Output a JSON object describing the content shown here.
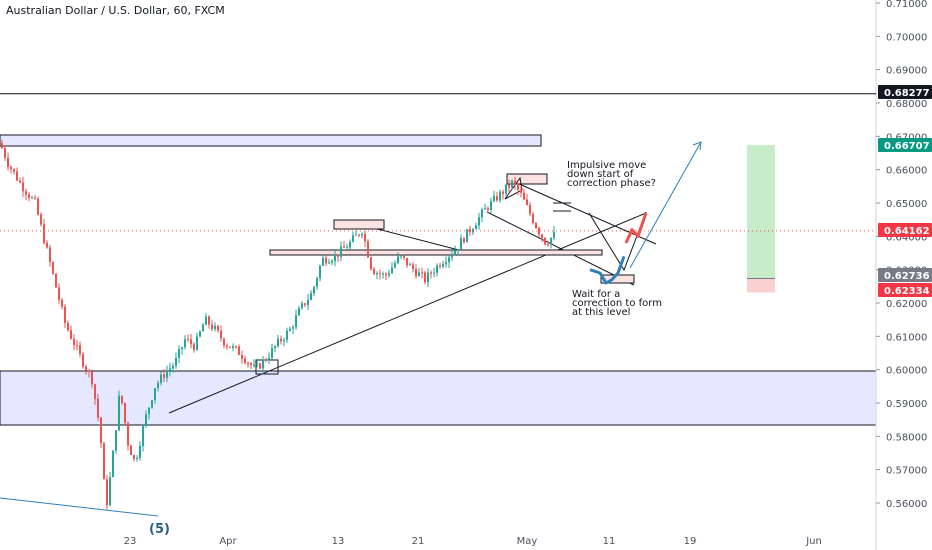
{
  "header": {
    "title": "Australian Dollar / U.S. Dollar, 60, FXCM"
  },
  "chart_data": {
    "type": "candlestick",
    "symbol": "AUD/USD",
    "timeframe": "60",
    "source": "FXCM",
    "ylim": [
      0.5515,
      0.714
    ],
    "x_ticks": [
      "23",
      "Apr",
      "13",
      "21",
      "May",
      "11",
      "19",
      "Jun"
    ],
    "y_ticks": [
      "0.71000",
      "0.70000",
      "0.69000",
      "0.68000",
      "0.67000",
      "0.66000",
      "0.65000",
      "0.64000",
      "0.63000",
      "0.62000",
      "0.61000",
      "0.60000",
      "0.59000",
      "0.58000",
      "0.57000",
      "0.56000"
    ],
    "price_path": [
      [
        0,
        0.668
      ],
      [
        8,
        0.662
      ],
      [
        20,
        0.656
      ],
      [
        35,
        0.65
      ],
      [
        45,
        0.638
      ],
      [
        55,
        0.626
      ],
      [
        65,
        0.614
      ],
      [
        80,
        0.604
      ],
      [
        92,
        0.597
      ],
      [
        100,
        0.582
      ],
      [
        106,
        0.558
      ],
      [
        112,
        0.572
      ],
      [
        120,
        0.594
      ],
      [
        128,
        0.578
      ],
      [
        135,
        0.572
      ],
      [
        145,
        0.585
      ],
      [
        155,
        0.595
      ],
      [
        165,
        0.599
      ],
      [
        175,
        0.602
      ],
      [
        185,
        0.609
      ],
      [
        195,
        0.607
      ],
      [
        205,
        0.615
      ],
      [
        215,
        0.612
      ],
      [
        225,
        0.608
      ],
      [
        240,
        0.605
      ],
      [
        255,
        0.6
      ],
      [
        265,
        0.603
      ],
      [
        278,
        0.608
      ],
      [
        290,
        0.612
      ],
      [
        300,
        0.618
      ],
      [
        312,
        0.623
      ],
      [
        322,
        0.633
      ],
      [
        335,
        0.634
      ],
      [
        350,
        0.638
      ],
      [
        362,
        0.642
      ],
      [
        372,
        0.63
      ],
      [
        385,
        0.628
      ],
      [
        400,
        0.634
      ],
      [
        410,
        0.631
      ],
      [
        425,
        0.627
      ],
      [
        440,
        0.632
      ],
      [
        455,
        0.636
      ],
      [
        470,
        0.642
      ],
      [
        485,
        0.648
      ],
      [
        498,
        0.652
      ],
      [
        512,
        0.656
      ],
      [
        520,
        0.653
      ],
      [
        528,
        0.648
      ],
      [
        538,
        0.642
      ],
      [
        546,
        0.638
      ],
      [
        556,
        0.641
      ]
    ],
    "projection_blue": [
      [
        590,
        0.63
      ],
      [
        600,
        0.629
      ],
      [
        606,
        0.626
      ],
      [
        612,
        0.627
      ],
      [
        618,
        0.629
      ],
      [
        624,
        0.634
      ]
    ],
    "projection_red": [
      [
        626,
        0.638
      ],
      [
        632,
        0.642
      ],
      [
        638,
        0.64
      ],
      [
        646,
        0.647
      ]
    ],
    "current_price": 0.64162,
    "level_lines": [
      {
        "price": 0.68277,
        "label": "0.68277"
      }
    ],
    "price_badges": [
      {
        "label": "0.68277",
        "color": "#131722"
      },
      {
        "label": "0.66707",
        "color": "#089981"
      },
      {
        "label": "0.64162",
        "color": "#f23645"
      },
      {
        "label": "0.62736",
        "color": "#787b86"
      },
      {
        "label": "0.62334",
        "color": "#f23645"
      }
    ],
    "position_tool": {
      "target": 0.66707,
      "entry": 0.62736,
      "stop": 0.62334
    },
    "annotations": [
      "Impulsive move",
      "down start of",
      "correction  phase?",
      "Wait for a",
      "correction to form",
      "at this level"
    ],
    "wave_label": "(5)",
    "colors": {
      "up": "#26a69a",
      "down": "#ef5350",
      "projection_blue": "#2e80b8",
      "projection_red": "#ef5350",
      "zone_fill": "#e6e8ff",
      "green_zone": "#c8ecc9",
      "red_zone": "#fbd0d0"
    }
  }
}
